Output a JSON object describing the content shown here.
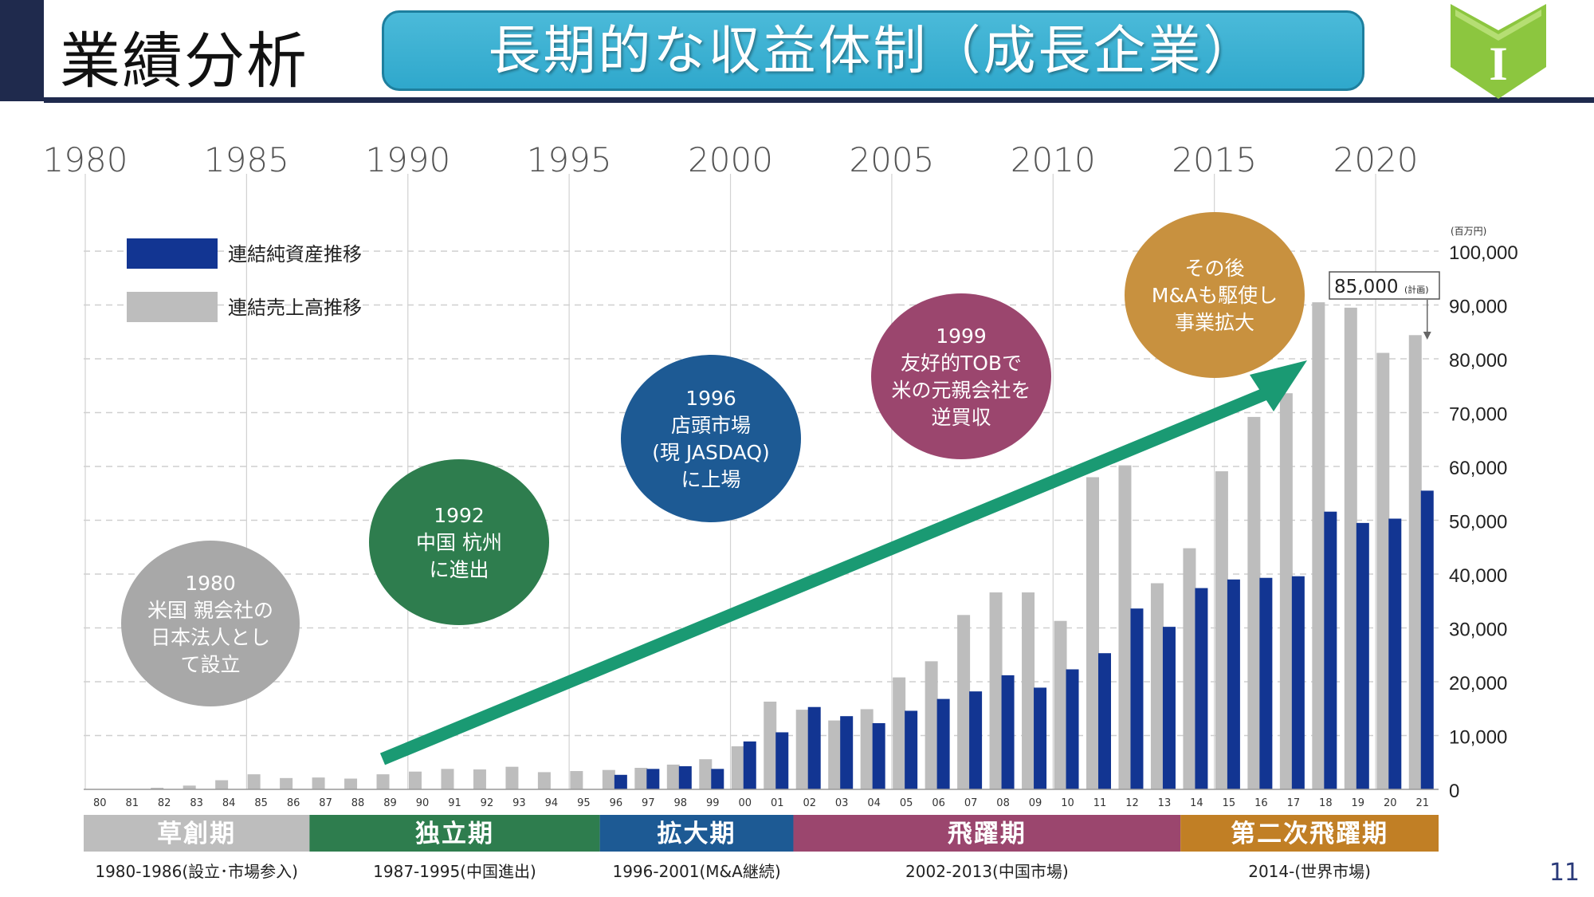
{
  "header": {
    "title": "業績分析",
    "banner": "長期的な収益体制（成長企業）",
    "badge_letter": "I"
  },
  "page_number": "11",
  "colors": {
    "net_assets": "#123592",
    "sales": "#bdbdbd",
    "arrow": "#1a9a73",
    "header_navy": "#1f2a4d",
    "banner": "#37addb",
    "badge": "#8cc63f"
  },
  "callouts": [
    {
      "lines": [
        "1980",
        "米国 親会社の",
        "日本法人とし",
        "て設立"
      ],
      "color": "#a8a8a8"
    },
    {
      "lines": [
        "1992",
        "中国 杭州",
        "に進出"
      ],
      "color": "#2e7d4e"
    },
    {
      "lines": [
        "1996",
        "店頭市場",
        "(現 JASDAQ)",
        "に上場"
      ],
      "color": "#1d5a94"
    },
    {
      "lines": [
        "1999",
        "友好的TOBで",
        "米の元親会社を",
        "逆買収"
      ],
      "color": "#9b466e"
    },
    {
      "lines": [
        "その後",
        "M&Aも駆使し",
        "事業拡大"
      ],
      "color": "#c8913f"
    }
  ],
  "annotation": {
    "value_text": "85,000",
    "note": "(計画)"
  },
  "phases": [
    {
      "label": "草創期",
      "period": "1980-1986(設立･市場参入)",
      "color": "#bdbdbd"
    },
    {
      "label": "独立期",
      "period": "1987-1995(中国進出)",
      "color": "#2e7d4e"
    },
    {
      "label": "拡大期",
      "period": "1996-2001(M&A継続)",
      "color": "#1d5a94"
    },
    {
      "label": "飛躍期",
      "period": "2002-2013(中国市場)",
      "color": "#9b466e"
    },
    {
      "label": "第二次飛躍期",
      "period": "2014-(世界市場)",
      "color": "#c17f25"
    }
  ],
  "chart_data": {
    "type": "bar",
    "title": "",
    "xlabel": "",
    "ylabel": "(百万円)",
    "ylim": [
      0,
      100000
    ],
    "yticks": [
      "0",
      "10,000",
      "20,000",
      "30,000",
      "40,000",
      "50,000",
      "60,000",
      "70,000",
      "80,000",
      "90,000",
      "100,000"
    ],
    "categories": [
      "80",
      "81",
      "82",
      "83",
      "84",
      "85",
      "86",
      "87",
      "88",
      "89",
      "90",
      "91",
      "92",
      "93",
      "94",
      "95",
      "96",
      "97",
      "98",
      "99",
      "00",
      "01",
      "02",
      "03",
      "04",
      "05",
      "06",
      "07",
      "08",
      "09",
      "10",
      "11",
      "12",
      "13",
      "14",
      "15",
      "16",
      "17",
      "18",
      "19",
      "20",
      "21"
    ],
    "year_labels": [
      "1980",
      "1985",
      "1990",
      "1995",
      "2000",
      "2005",
      "2010",
      "2015",
      "2020"
    ],
    "series": [
      {
        "name": "連結売上高推移",
        "values": [
          0,
          0,
          300,
          700,
          1700,
          2800,
          2100,
          2200,
          2000,
          2800,
          3300,
          3800,
          3700,
          4200,
          3200,
          3400,
          3600,
          4000,
          4600,
          5600,
          8000,
          16300,
          14800,
          12800,
          14900,
          20800,
          23800,
          32400,
          36600,
          36600,
          31300,
          58000,
          60200,
          38300,
          44800,
          59100,
          69200,
          73600,
          90500,
          89500,
          81100,
          84400
        ]
      },
      {
        "name": "連結純資産推移",
        "values": [
          0,
          0,
          0,
          0,
          0,
          0,
          0,
          0,
          0,
          0,
          0,
          0,
          0,
          0,
          0,
          0,
          2700,
          3800,
          4300,
          3800,
          8900,
          10600,
          15300,
          13600,
          12300,
          14600,
          16800,
          18200,
          21200,
          18900,
          22300,
          25300,
          33600,
          30200,
          37400,
          39000,
          39300,
          39600,
          51600,
          49500,
          50300,
          55500
        ]
      }
    ],
    "grid": true,
    "legend_position": "top-left"
  }
}
